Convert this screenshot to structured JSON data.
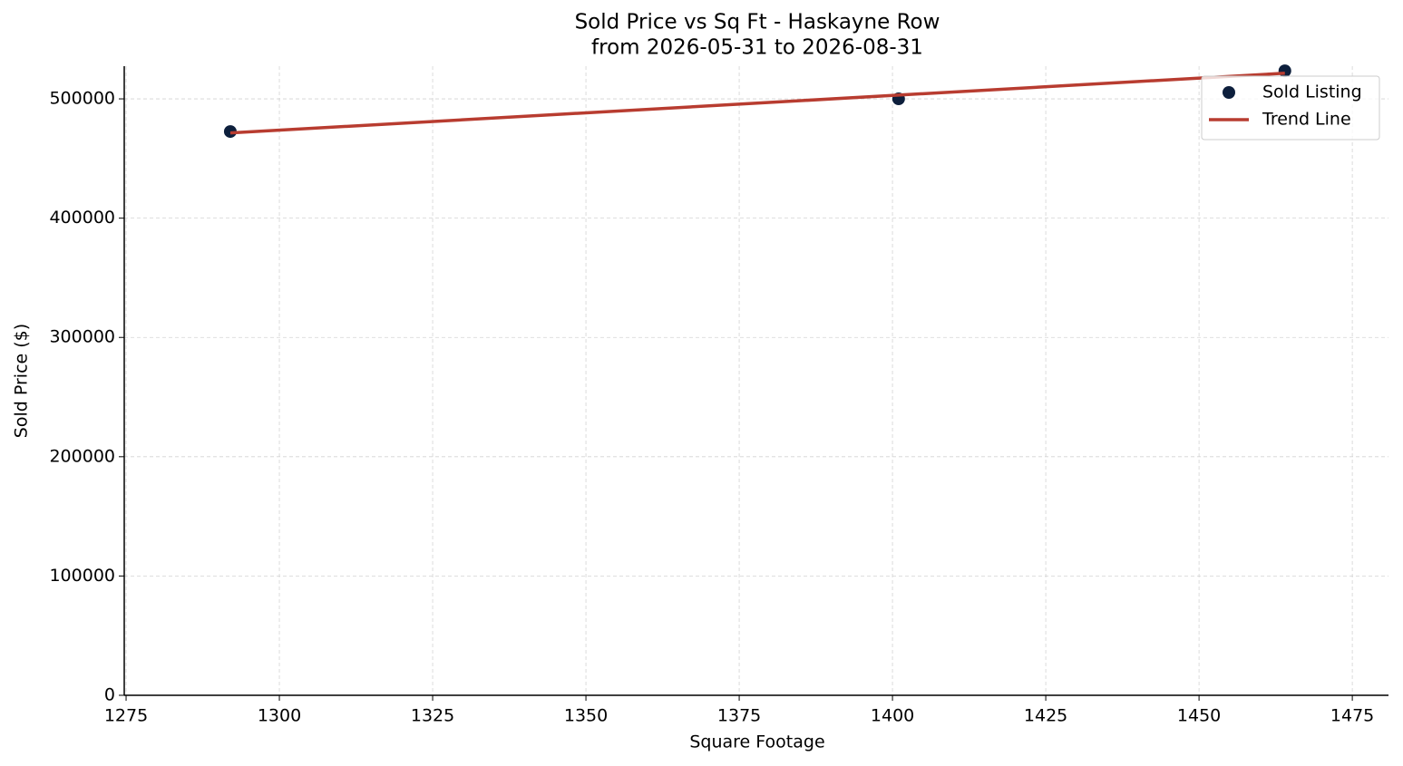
{
  "chart_data": {
    "type": "scatter",
    "title": "Sold Price vs Sq Ft - Haskayne Row",
    "subtitle": "from 2026-05-31 to 2026-08-31",
    "x_label": "Square Footage",
    "y_label": "Sold Price ($)",
    "xlim": [
      1274.7,
      1480.9
    ],
    "ylim": [
      0,
      527400
    ],
    "xticks": [
      1275,
      1300,
      1325,
      1350,
      1375,
      1400,
      1425,
      1450,
      1475
    ],
    "yticks": [
      0,
      100000,
      200000,
      300000,
      400000,
      500000
    ],
    "grid": true,
    "legend": "upper right",
    "series": [
      {
        "name": "Sold Listing",
        "type": "scatter",
        "color": "#0d1f3c",
        "x": [
          1292,
          1401,
          1464
        ],
        "values": [
          472600,
          500000,
          523500
        ]
      },
      {
        "name": "Trend Line",
        "type": "line",
        "color": "#b83c30",
        "x": [
          1292,
          1464
        ],
        "values": [
          471400,
          521500
        ]
      }
    ]
  }
}
